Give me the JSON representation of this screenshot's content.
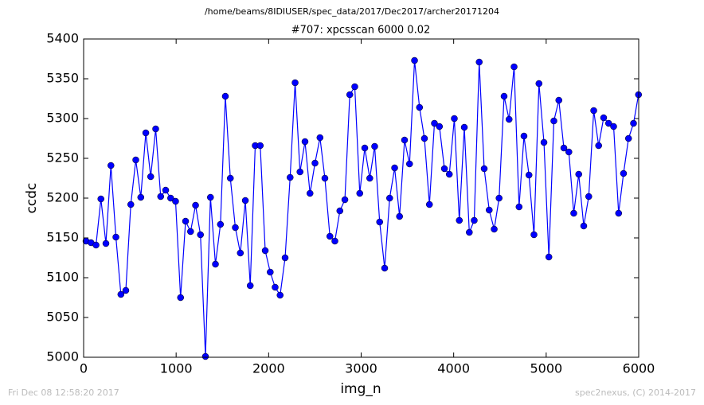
{
  "chart_data": {
    "type": "line",
    "suptitle": "/home/beams/8IDIUSER/spec_data/2017/Dec2017/archer20171204",
    "title": "#707: xpcsscan 6000 0.02",
    "x_label": "img_n",
    "y_label": "ccdc",
    "footer_left": "Fri Dec 08 12:58:20 2017",
    "footer_right": "spec2nexus, (C) 2014-2017",
    "color": "#0000ff",
    "x": [
      26,
      80,
      134,
      187,
      241,
      295,
      349,
      403,
      456,
      510,
      564,
      618,
      672,
      725,
      779,
      833,
      887,
      941,
      994,
      1048,
      1102,
      1156,
      1210,
      1263,
      1317,
      1371,
      1425,
      1479,
      1532,
      1586,
      1640,
      1694,
      1748,
      1801,
      1855,
      1909,
      1963,
      2017,
      2070,
      2124,
      2178,
      2232,
      2286,
      2339,
      2393,
      2447,
      2501,
      2555,
      2608,
      2662,
      2716,
      2770,
      2824,
      2877,
      2931,
      2985,
      3039,
      3093,
      3146,
      3200,
      3254,
      3308,
      3362,
      3415,
      3469,
      3523,
      3577,
      3631,
      3684,
      3738,
      3792,
      3846,
      3900,
      3953,
      4007,
      4061,
      4115,
      4169,
      4222,
      4276,
      4330,
      4384,
      4438,
      4491,
      4545,
      4599,
      4653,
      4707,
      4760,
      4814,
      4868,
      4922,
      4976,
      5029,
      5083,
      5137,
      5191,
      5245,
      5298,
      5352,
      5406,
      5460,
      5514,
      5567,
      5621,
      5675,
      5729,
      5783,
      5836,
      5890,
      5944,
      5998
    ],
    "values": [
      5146,
      5144,
      5141,
      5199,
      5143,
      5241,
      5151,
      5079,
      5084,
      5192,
      5248,
      5201,
      5282,
      5227,
      5287,
      5202,
      5210,
      5200,
      5196,
      5075,
      5171,
      5158,
      5191,
      5154,
      5001,
      5201,
      5117,
      5167,
      5328,
      5225,
      5163,
      5131,
      5197,
      5090,
      5266,
      5266,
      5134,
      5107,
      5088,
      5078,
      5125,
      5226,
      5345,
      5233,
      5271,
      5206,
      5244,
      5276,
      5225,
      5152,
      5146,
      5184,
      5198,
      5330,
      5340,
      5206,
      5263,
      5225,
      5265,
      5170,
      5112,
      5200,
      5238,
      5177,
      5273,
      5243,
      5373,
      5314,
      5275,
      5192,
      5294,
      5290,
      5237,
      5230,
      5300,
      5172,
      5289,
      5157,
      5172,
      5371,
      5237,
      5185,
      5161,
      5200,
      5328,
      5299,
      5365,
      5189,
      5278,
      5229,
      5154,
      5344,
      5270,
      5126,
      5297,
      5323,
      5263,
      5258,
      5181,
      5230,
      5165,
      5202,
      5310,
      5266,
      5301,
      5294,
      5290,
      5181,
      5231,
      5275,
      5294,
      5330
    ],
    "xlim": [
      0,
      6000
    ],
    "xticks": [
      0,
      1000,
      2000,
      3000,
      4000,
      5000,
      6000
    ],
    "ylim": [
      5000,
      5400
    ],
    "yticks": [
      5000,
      5050,
      5100,
      5150,
      5200,
      5250,
      5300,
      5350,
      5400
    ]
  }
}
